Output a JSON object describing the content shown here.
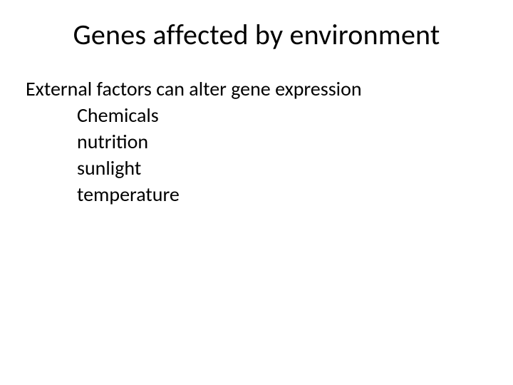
{
  "slide": {
    "title": "Genes affected by environment",
    "intro": "External factors can alter gene expression",
    "items": [
      "Chemicals",
      "nutrition",
      "sunlight",
      "temperature"
    ]
  },
  "style": {
    "background_color": "#ffffff",
    "text_color": "#000000",
    "title_fontsize": 40,
    "body_fontsize": 28,
    "font_family": "Calibri"
  }
}
